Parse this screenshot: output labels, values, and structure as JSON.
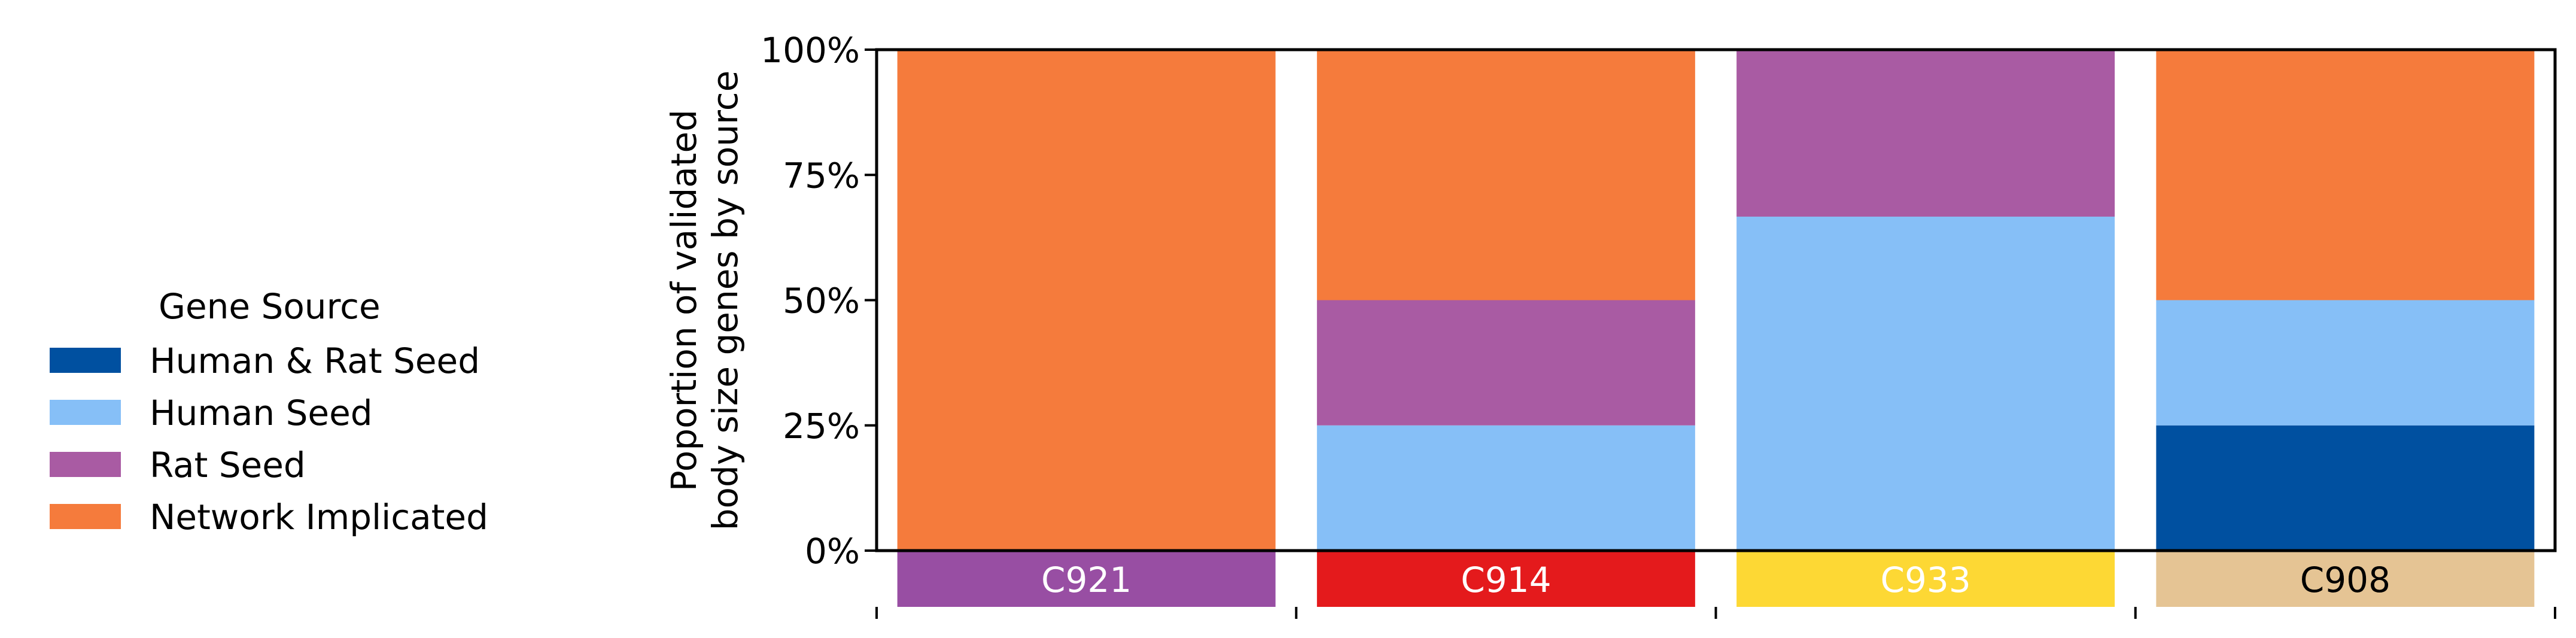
{
  "chart_data": {
    "type": "bar",
    "stacked": true,
    "categories": [
      "C921",
      "C914",
      "C933",
      "C908"
    ],
    "category_colors": [
      "#984ea3",
      "#e41a1c",
      "#fdd834",
      "#e5c494"
    ],
    "category_text_colors": [
      "#ffffff",
      "#ffffff",
      "#ffffff",
      "#000000"
    ],
    "series": [
      {
        "name": "Human & Rat Seed",
        "color": "#0050a0",
        "values": [
          0,
          0,
          0,
          0.25
        ]
      },
      {
        "name": "Human Seed",
        "color": "#86bff7",
        "values": [
          0,
          0.25,
          0.6667,
          0.25
        ]
      },
      {
        "name": "Rat Seed",
        "color": "#a95ba3",
        "values": [
          0,
          0.25,
          0.3333,
          0
        ]
      },
      {
        "name": "Network Implicated",
        "color": "#f57b3c",
        "values": [
          1,
          0.5,
          0,
          0.5
        ]
      }
    ],
    "ylabel_lines": [
      "Poportion of validated",
      "body size genes by source"
    ],
    "xlabel": "",
    "ylim": [
      0,
      1
    ],
    "yticks": [
      0,
      0.25,
      0.5,
      0.75,
      1
    ],
    "ytick_labels": [
      "0%",
      "25%",
      "50%",
      "75%",
      "100%"
    ],
    "legend_title": "Gene Source",
    "legend_position": "left",
    "grid": false
  }
}
